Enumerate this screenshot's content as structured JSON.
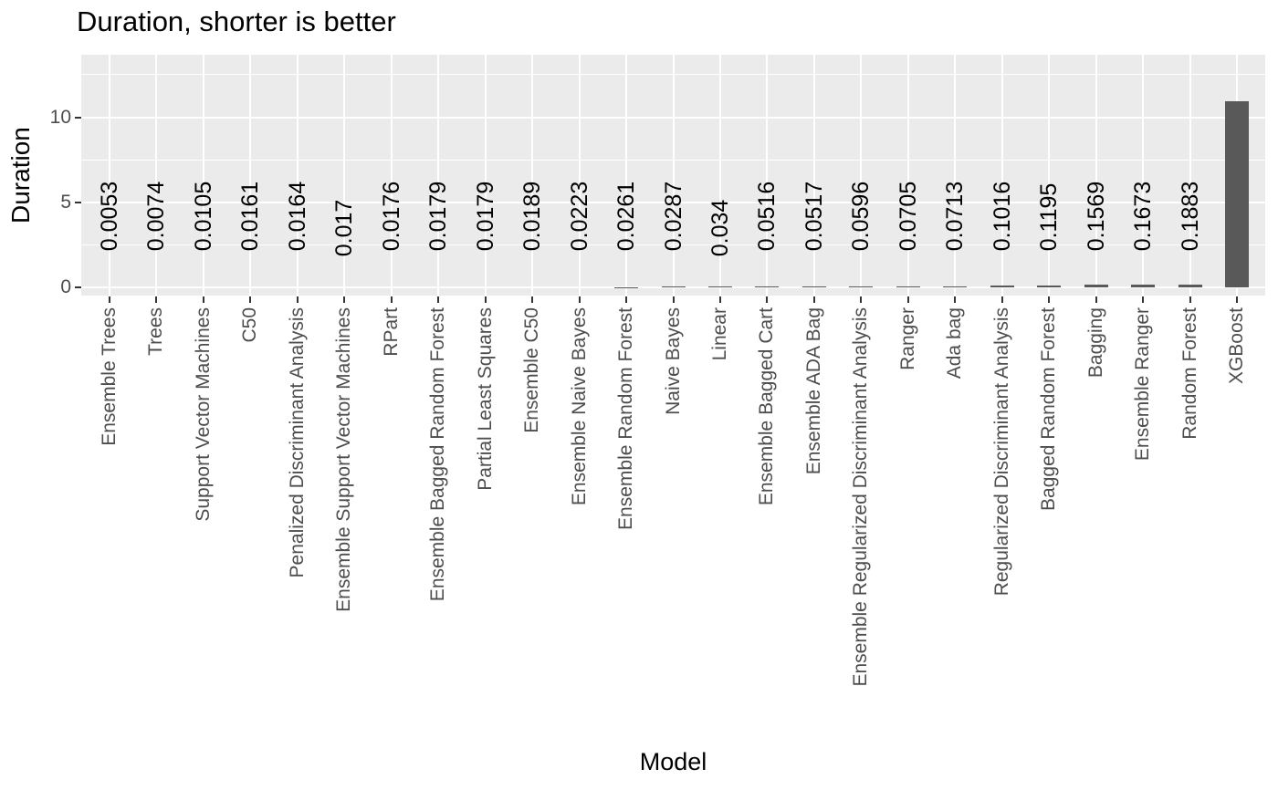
{
  "title": "Duration, shorter is better",
  "colors": {
    "panel_bg": "#EBEBEB",
    "grid": "#FFFFFF",
    "bar": "#595959",
    "axis_text": "#4D4D4D",
    "tick": "#333333",
    "title_text": "#000000",
    "value_label_text": "#000000",
    "background": "#FFFFFF"
  },
  "chart_data": {
    "type": "bar",
    "title": "Duration, shorter is better",
    "xlabel": "Model",
    "ylabel": "Duration",
    "categories": [
      "Ensemble Trees",
      "Trees",
      "Support Vector Machines",
      "C50",
      "Penalized Discriminant Analysis",
      "Ensemble Support Vector Machines",
      "RPart",
      "Ensemble Bagged Random Forest",
      "Partial Least Squares",
      "Ensemble C50",
      "Ensemble Naive Bayes",
      "Ensemble Random Forest",
      "Naive Bayes",
      "Linear",
      "Ensemble Bagged Cart",
      "Ensemble ADA Bag",
      "Ensemble Regularized Discriminant Analysis",
      "Ranger",
      "Ada bag",
      "Regularized Discriminant Analysis",
      "Bagged Random Forest",
      "Bagging",
      "Ensemble Ranger",
      "Random Forest",
      "XGBoost"
    ],
    "values": [
      0.0053,
      0.0074,
      0.0105,
      0.0161,
      0.0164,
      0.017,
      0.0176,
      0.0179,
      0.0179,
      0.0189,
      0.0223,
      0.0261,
      0.0287,
      0.034,
      0.0516,
      0.0517,
      0.0596,
      0.0705,
      0.0713,
      0.1016,
      0.1195,
      0.1569,
      0.1673,
      0.1883,
      10.94
    ],
    "bar_labels": [
      "0.0053",
      "0.0074",
      "0.0105",
      "0.0161",
      "0.0164",
      "0.017",
      "0.0176",
      "0.0179",
      "0.0179",
      "0.0189",
      "0.0223",
      "0.0261",
      "0.0287",
      "0.034",
      "0.0516",
      "0.0517",
      "0.0596",
      "0.0705",
      "0.0713",
      "0.1016",
      "0.1195",
      "0.1569",
      "0.1673",
      "0.1883",
      ""
    ],
    "yticks": [
      {
        "value": 0,
        "label": "0"
      },
      {
        "value": 5,
        "label": "5"
      },
      {
        "value": 10,
        "label": "10"
      }
    ],
    "minor_gridlines_at": [
      2.5,
      7.5,
      12.5
    ],
    "ylim": [
      -0.48,
      13.65
    ],
    "grid": "on",
    "legend": "none",
    "bar_orientation": "vertical"
  }
}
